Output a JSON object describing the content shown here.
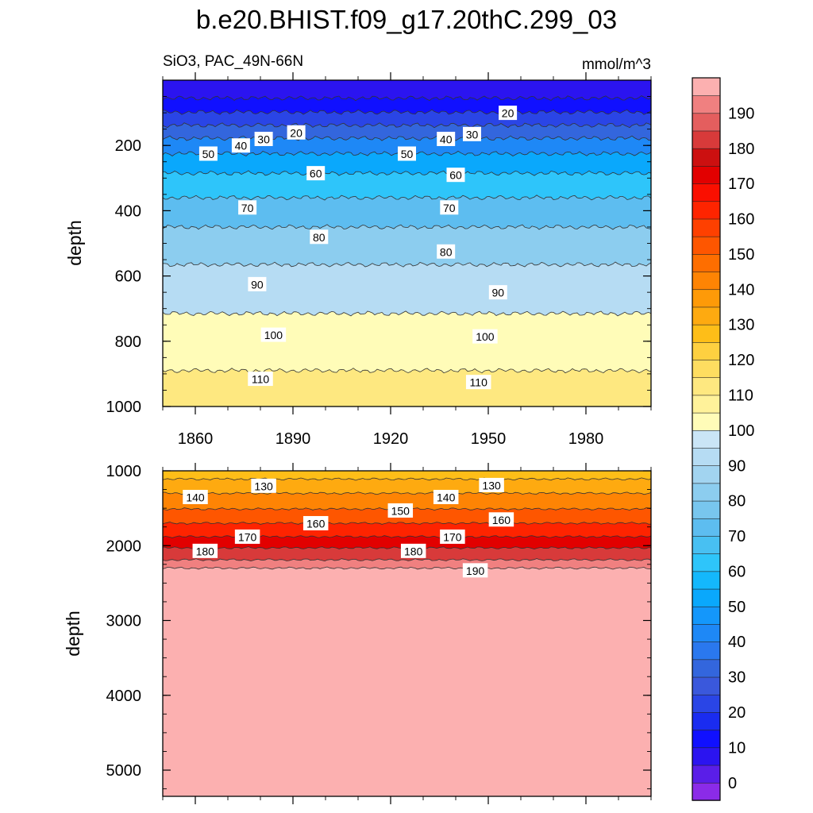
{
  "title": "b.e20.BHIST.f09_g17.20thC.299_03",
  "chart_data": {
    "type": "heatmap",
    "variable": "SiO3, PAC_49N-66N",
    "units": "mmol/m^3",
    "x_ticks": [
      1860,
      1890,
      1920,
      1950,
      1980
    ],
    "xlim": [
      1850,
      2000
    ],
    "top_panel": {
      "ylabel": "depth",
      "ylim": [
        0,
        1000
      ],
      "y_ticks": [
        200,
        400,
        600,
        800,
        1000
      ],
      "contours": [
        {
          "value": 10,
          "depth": 55
        },
        {
          "value": 20,
          "depth": 98
        },
        {
          "value": 30,
          "depth": 138
        },
        {
          "value": 40,
          "depth": 178
        },
        {
          "value": 50,
          "depth": 225
        },
        {
          "value": 60,
          "depth": 285
        },
        {
          "value": 70,
          "depth": 360
        },
        {
          "value": 80,
          "depth": 450
        },
        {
          "value": 90,
          "depth": 565
        },
        {
          "value": 100,
          "depth": 715
        },
        {
          "value": 110,
          "depth": 890
        },
        {
          "value": 120,
          "depth": 1025
        }
      ],
      "contour_labels": [
        {
          "text": "20",
          "year": 1891,
          "depth": 160
        },
        {
          "text": "30",
          "year": 1881,
          "depth": 180
        },
        {
          "text": "40",
          "year": 1874,
          "depth": 200
        },
        {
          "text": "50",
          "year": 1864,
          "depth": 225
        },
        {
          "text": "60",
          "year": 1897,
          "depth": 285
        },
        {
          "text": "70",
          "year": 1876,
          "depth": 390
        },
        {
          "text": "80",
          "year": 1898,
          "depth": 480
        },
        {
          "text": "90",
          "year": 1879,
          "depth": 625
        },
        {
          "text": "100",
          "year": 1884,
          "depth": 780
        },
        {
          "text": "110",
          "year": 1880,
          "depth": 915
        },
        {
          "text": "20",
          "year": 1956,
          "depth": 100
        },
        {
          "text": "30",
          "year": 1945,
          "depth": 165
        },
        {
          "text": "40",
          "year": 1937,
          "depth": 180
        },
        {
          "text": "50",
          "year": 1925,
          "depth": 225
        },
        {
          "text": "60",
          "year": 1940,
          "depth": 290
        },
        {
          "text": "70",
          "year": 1938,
          "depth": 390
        },
        {
          "text": "80",
          "year": 1937,
          "depth": 525
        },
        {
          "text": "90",
          "year": 1953,
          "depth": 650
        },
        {
          "text": "100",
          "year": 1949,
          "depth": 785
        },
        {
          "text": "110",
          "year": 1947,
          "depth": 925
        }
      ]
    },
    "bottom_panel": {
      "ylabel": "depth",
      "ylim": [
        1000,
        5350
      ],
      "y_ticks": [
        1000,
        2000,
        3000,
        4000,
        5000
      ],
      "contours": [
        {
          "value": 130,
          "depth": 1110
        },
        {
          "value": 140,
          "depth": 1300
        },
        {
          "value": 150,
          "depth": 1510
        },
        {
          "value": 160,
          "depth": 1700
        },
        {
          "value": 170,
          "depth": 1880
        },
        {
          "value": 180,
          "depth": 2030
        },
        {
          "value": 190,
          "depth": 2190
        },
        {
          "value": 195,
          "depth": 2300
        }
      ],
      "contour_labels": [
        {
          "text": "130",
          "year": 1881,
          "depth": 1200
        },
        {
          "text": "140",
          "year": 1860,
          "depth": 1350
        },
        {
          "text": "160",
          "year": 1897,
          "depth": 1700
        },
        {
          "text": "170",
          "year": 1876,
          "depth": 1880
        },
        {
          "text": "180",
          "year": 1863,
          "depth": 2070
        },
        {
          "text": "150",
          "year": 1923,
          "depth": 1530
        },
        {
          "text": "140",
          "year": 1937,
          "depth": 1350
        },
        {
          "text": "130",
          "year": 1951,
          "depth": 1190
        },
        {
          "text": "160",
          "year": 1954,
          "depth": 1650
        },
        {
          "text": "170",
          "year": 1939,
          "depth": 1880
        },
        {
          "text": "180",
          "year": 1927,
          "depth": 2070
        },
        {
          "text": "190",
          "year": 1946,
          "depth": 2330
        }
      ]
    },
    "colorbar": {
      "levels": [
        0,
        5,
        10,
        15,
        20,
        25,
        30,
        35,
        40,
        45,
        50,
        55,
        60,
        65,
        70,
        75,
        80,
        85,
        90,
        95,
        100,
        105,
        110,
        115,
        120,
        125,
        130,
        135,
        140,
        145,
        150,
        155,
        160,
        165,
        170,
        175,
        180,
        185,
        190,
        195
      ],
      "labels": [
        0,
        10,
        20,
        30,
        40,
        50,
        60,
        70,
        80,
        90,
        100,
        110,
        120,
        130,
        140,
        150,
        160,
        170,
        180,
        190
      ],
      "colors": [
        "#8b2be8",
        "#5a1ee8",
        "#2b14f0",
        "#1010ff",
        "#1a2cf0",
        "#2a45e6",
        "#3a58dc",
        "#3366dd",
        "#2a78ee",
        "#1e88f6",
        "#1497fb",
        "#0aa8fc",
        "#14b8fc",
        "#2ec5fa",
        "#48c0f2",
        "#5dbdf0",
        "#78c6ee",
        "#8ccdef",
        "#a2d4f0",
        "#b6dcf3",
        "#cae5f6",
        "#fffcb8",
        "#fff29a",
        "#fee880",
        "#fedd60",
        "#fed040",
        "#febe18",
        "#feaa10",
        "#fe9a08",
        "#fe8404",
        "#fe6e00",
        "#fe5600",
        "#fe4000",
        "#fe2400",
        "#fa0f00",
        "#e20000",
        "#cc1010",
        "#d83a3a",
        "#e45e5e",
        "#f08080",
        "#fcb0b0"
      ]
    }
  }
}
